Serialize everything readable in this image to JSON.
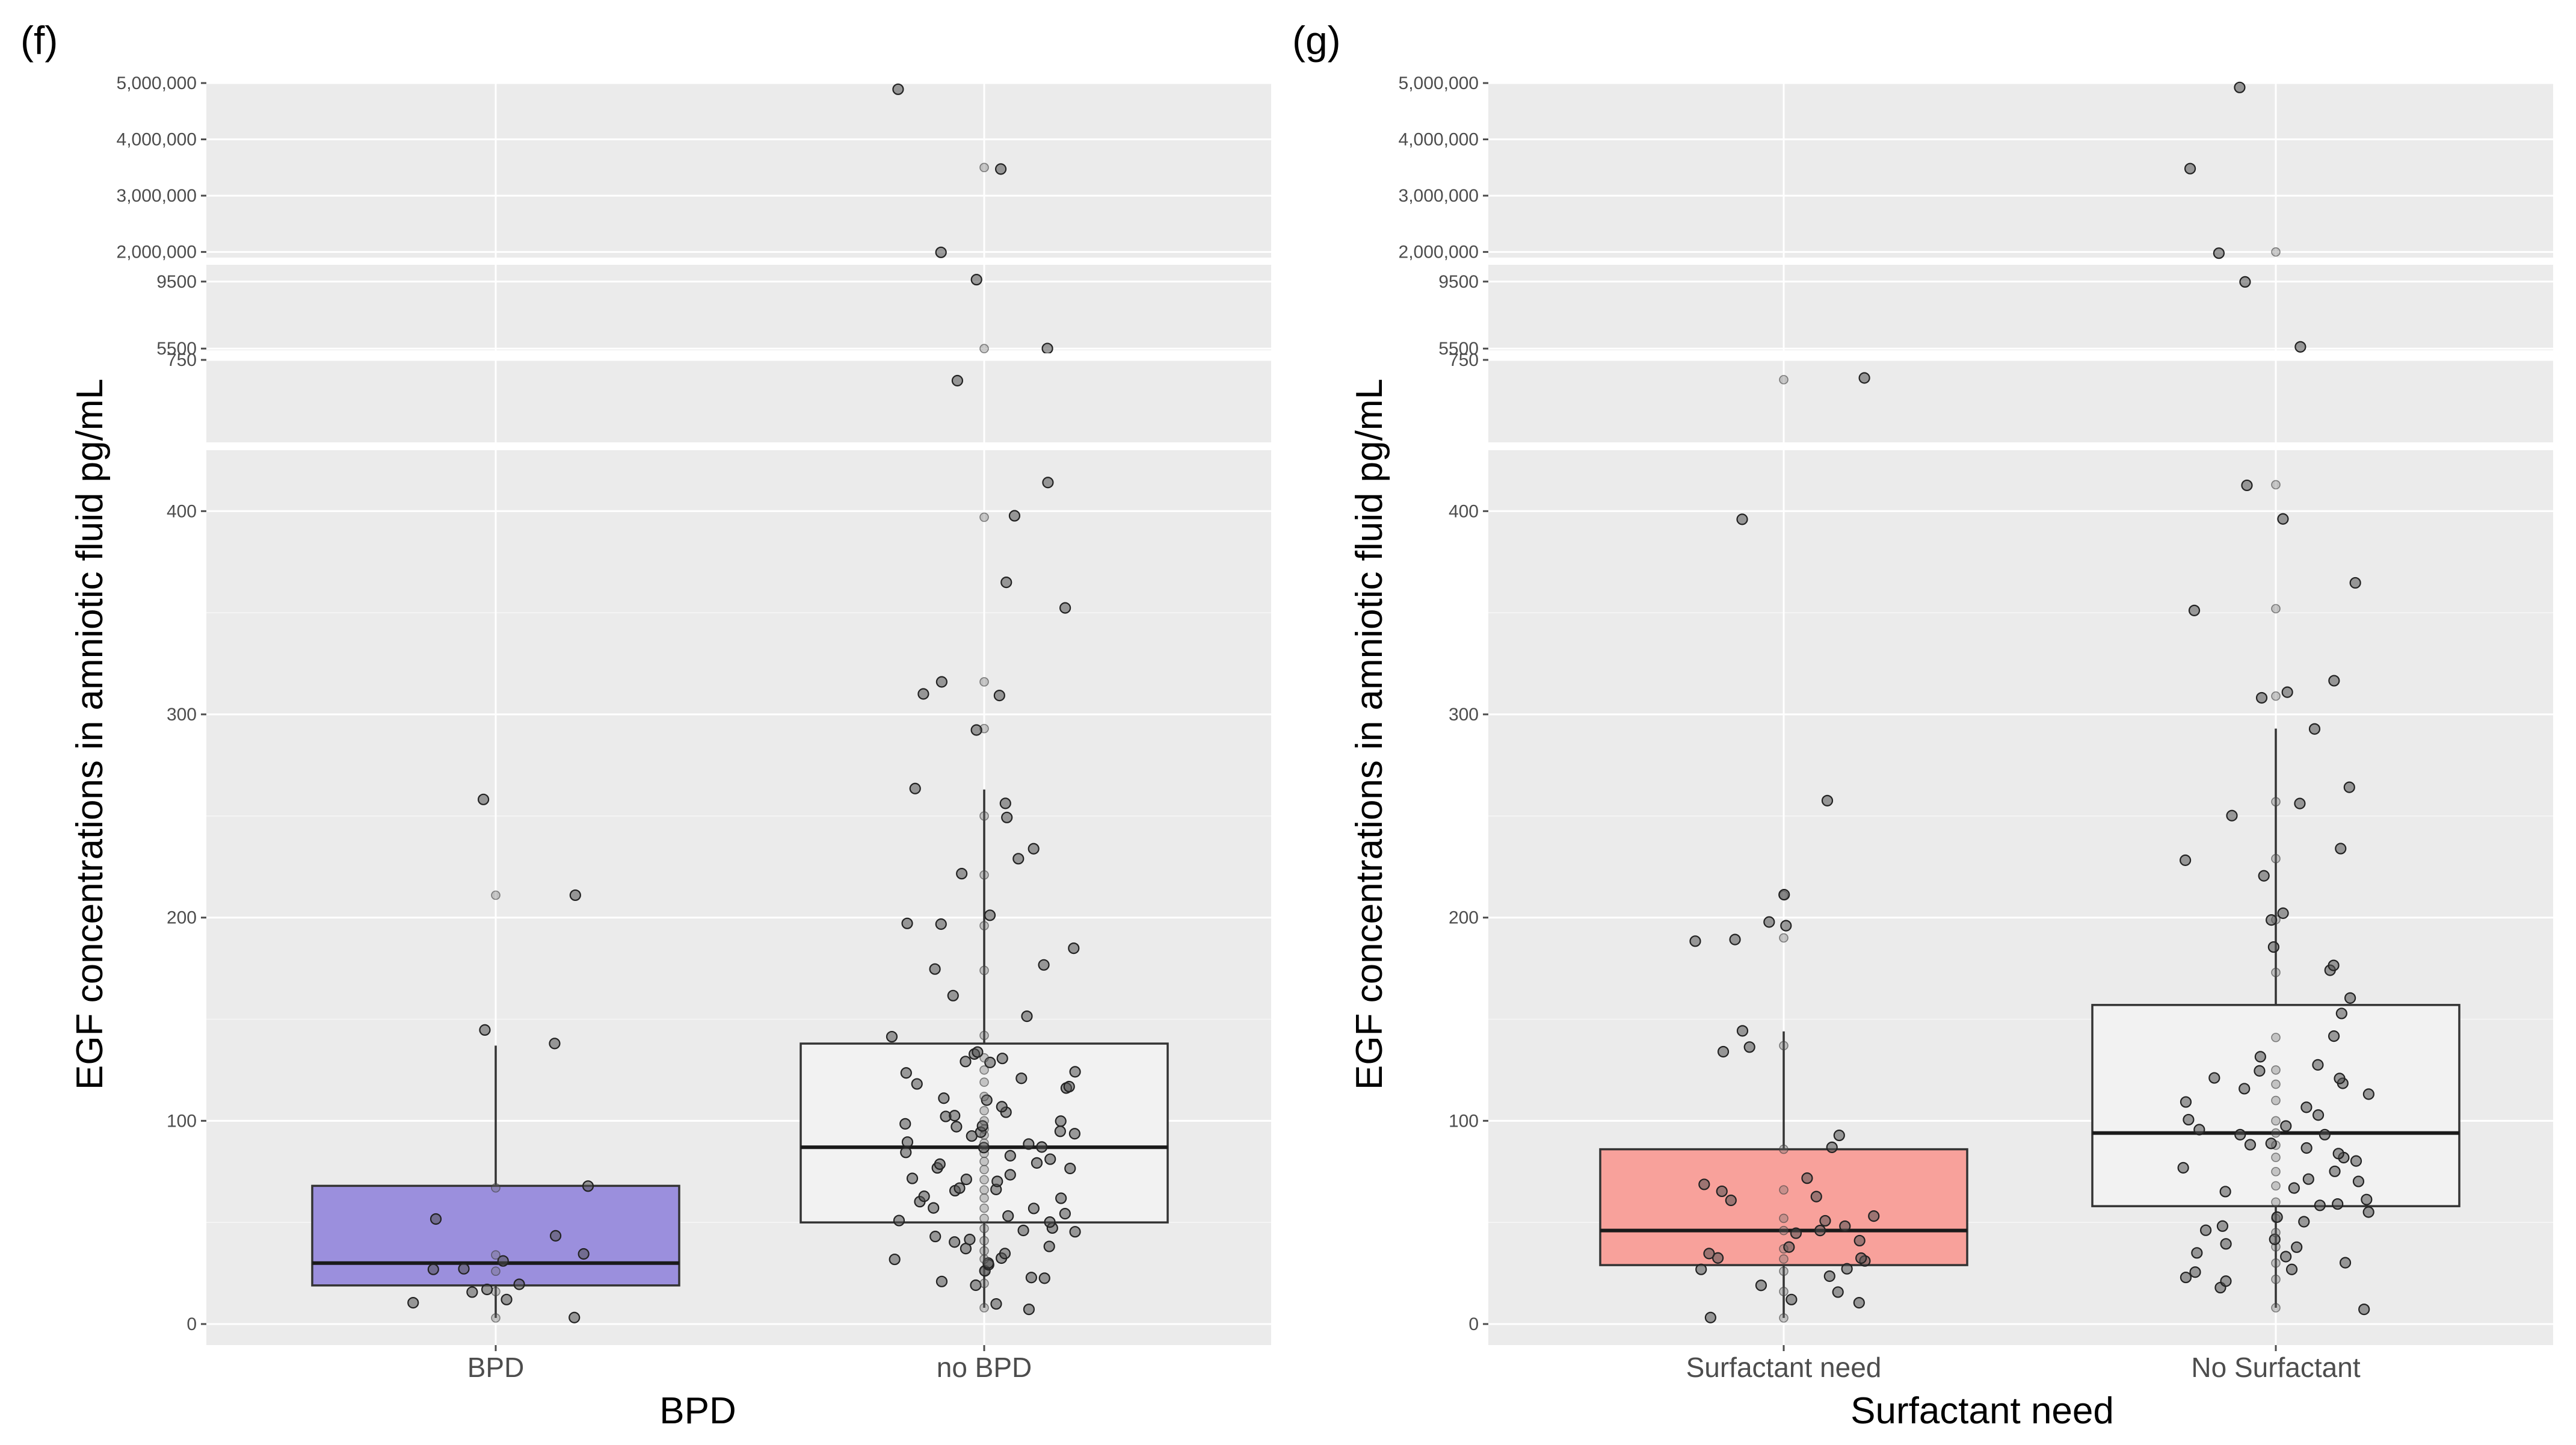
{
  "chart_data": [
    {
      "type": "box",
      "panel_label": "(f)",
      "title": "",
      "xlabel": "BPD",
      "ylabel": "EGF concentrations in amniotic fluid pg/mL",
      "categories": [
        "BPD",
        "no BPD"
      ],
      "y_axis_segments": [
        {
          "range": [
            0,
            430
          ],
          "ticks": [
            0,
            100,
            200,
            300,
            400
          ],
          "tick_labels": [
            "0",
            "100",
            "200",
            "300",
            "400"
          ]
        },
        {
          "range": [
            500,
            750
          ],
          "ticks": [
            750
          ],
          "tick_labels": [
            "750"
          ]
        },
        {
          "range": [
            5400,
            10500
          ],
          "ticks": [
            5500,
            9500
          ],
          "tick_labels": [
            "5500",
            "9500"
          ]
        },
        {
          "range": [
            1900000,
            5000000
          ],
          "ticks": [
            2000000,
            3000000,
            4000000,
            5000000
          ],
          "tick_labels": [
            "2,000,000",
            "3,000,000",
            "4,000,000",
            "5,000,000"
          ]
        }
      ],
      "series": [
        {
          "name": "BPD",
          "fill": "#9b8fdd",
          "box": {
            "q1": 19,
            "median": 30,
            "q3": 68,
            "whisker_low": 3,
            "whisker_high": 137
          },
          "points": [
            3,
            10,
            13,
            16,
            18,
            20,
            26,
            28,
            30,
            34,
            44,
            52,
            67,
            137,
            144,
            211,
            258
          ]
        },
        {
          "name": "no BPD",
          "fill": "#f2f2f2",
          "box": {
            "q1": 50,
            "median": 87,
            "q3": 138,
            "whisker_low": 8,
            "whisker_high": 263
          },
          "points": [
            8,
            10,
            18,
            20,
            22,
            24,
            26,
            28,
            30,
            32,
            33,
            35,
            36,
            38,
            40,
            41,
            43,
            45,
            47,
            48,
            50,
            52,
            53,
            55,
            57,
            58,
            60,
            62,
            63,
            65,
            66,
            68,
            70,
            71,
            72,
            74,
            76,
            77,
            78,
            80,
            81,
            83,
            84,
            86,
            88,
            89,
            90,
            92,
            93,
            94,
            95,
            96,
            97,
            98,
            100,
            101,
            103,
            105,
            108,
            110,
            112,
            115,
            117,
            119,
            121,
            123,
            125,
            128,
            130,
            131,
            132,
            134,
            142,
            152,
            161,
            174,
            176,
            185,
            196,
            198,
            200,
            221,
            229,
            233,
            250,
            257,
            263,
            293,
            309,
            311,
            316,
            352,
            364,
            397,
            413,
            690,
            5500,
            9500,
            2000000,
            3500000,
            4900000
          ]
        }
      ]
    },
    {
      "type": "box",
      "panel_label": "(g)",
      "title": "",
      "xlabel": "Surfactant need",
      "ylabel": "EGF concentrations in amniotic fluid pg/mL",
      "categories": [
        "Surfactant need",
        "No Surfactant"
      ],
      "y_axis_segments": [
        {
          "range": [
            0,
            430
          ],
          "ticks": [
            0,
            100,
            200,
            300,
            400
          ],
          "tick_labels": [
            "0",
            "100",
            "200",
            "300",
            "400"
          ]
        },
        {
          "range": [
            500,
            750
          ],
          "ticks": [
            750
          ],
          "tick_labels": [
            "750"
          ]
        },
        {
          "range": [
            5400,
            10500
          ],
          "ticks": [
            5500,
            9500
          ],
          "tick_labels": [
            "5500",
            "9500"
          ]
        },
        {
          "range": [
            1900000,
            5000000
          ],
          "ticks": [
            2000000,
            3000000,
            4000000,
            5000000
          ],
          "tick_labels": [
            "2,000,000",
            "3,000,000",
            "4,000,000",
            "5,000,000"
          ]
        }
      ],
      "series": [
        {
          "name": "Surfactant need",
          "fill": "#f8a19b",
          "box": {
            "q1": 29,
            "median": 46,
            "q3": 86,
            "whisker_low": 3,
            "whisker_high": 144
          },
          "points": [
            3,
            10,
            13,
            16,
            20,
            24,
            26,
            28,
            30,
            32,
            33,
            35,
            37,
            40,
            44,
            46,
            48,
            50,
            52,
            60,
            63,
            66,
            68,
            71,
            86,
            94,
            133,
            137,
            144,
            189,
            190,
            196,
            197,
            211,
            258,
            397,
            690
          ]
        },
        {
          "name": "No Surfactant",
          "fill": "#f2f2f2",
          "box": {
            "q1": 58,
            "median": 94,
            "q3": 157,
            "whisker_low": 8,
            "whisker_high": 293
          },
          "points": [
            8,
            18,
            20,
            22,
            25,
            28,
            30,
            32,
            35,
            38,
            40,
            42,
            45,
            48,
            50,
            52,
            55,
            58,
            60,
            62,
            65,
            68,
            70,
            72,
            75,
            78,
            80,
            82,
            84,
            86,
            88,
            90,
            92,
            94,
            96,
            98,
            100,
            103,
            106,
            110,
            113,
            116,
            118,
            120,
            122,
            125,
            128,
            131,
            141,
            152,
            161,
            173,
            176,
            185,
            199,
            201,
            221,
            229,
            235,
            250,
            257,
            263,
            293,
            309,
            311,
            316,
            352,
            364,
            397,
            413,
            5500,
            9500,
            2000000,
            3500000,
            4900000
          ]
        }
      ]
    }
  ]
}
